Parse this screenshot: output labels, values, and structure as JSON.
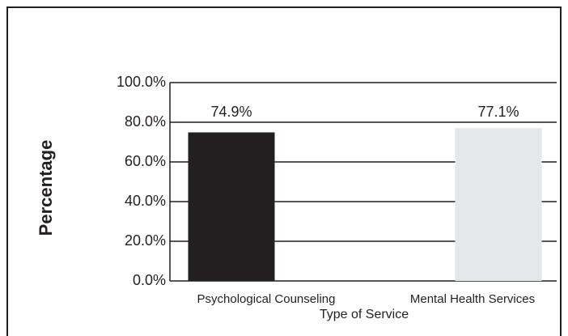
{
  "chart_data": {
    "type": "bar",
    "categories": [
      "Psychological Counseling",
      "Mental Health Services"
    ],
    "values": [
      74.9,
      77.1
    ],
    "value_labels": [
      "74.9%",
      "77.1%"
    ],
    "colors": [
      "#231f20",
      "#e6e7e8"
    ],
    "x_label": "Type of Service",
    "y_label": "Percentage",
    "ylim": [
      0,
      100
    ],
    "yticks": [
      {
        "value": 0,
        "label": "0.0%"
      },
      {
        "value": 20,
        "label": "20.0%"
      },
      {
        "value": 40,
        "label": "40.0%"
      },
      {
        "value": 60,
        "label": "60.0%"
      },
      {
        "value": 80,
        "label": "80.0%"
      },
      {
        "value": 100,
        "label": "100.0%"
      }
    ],
    "grid": true
  }
}
